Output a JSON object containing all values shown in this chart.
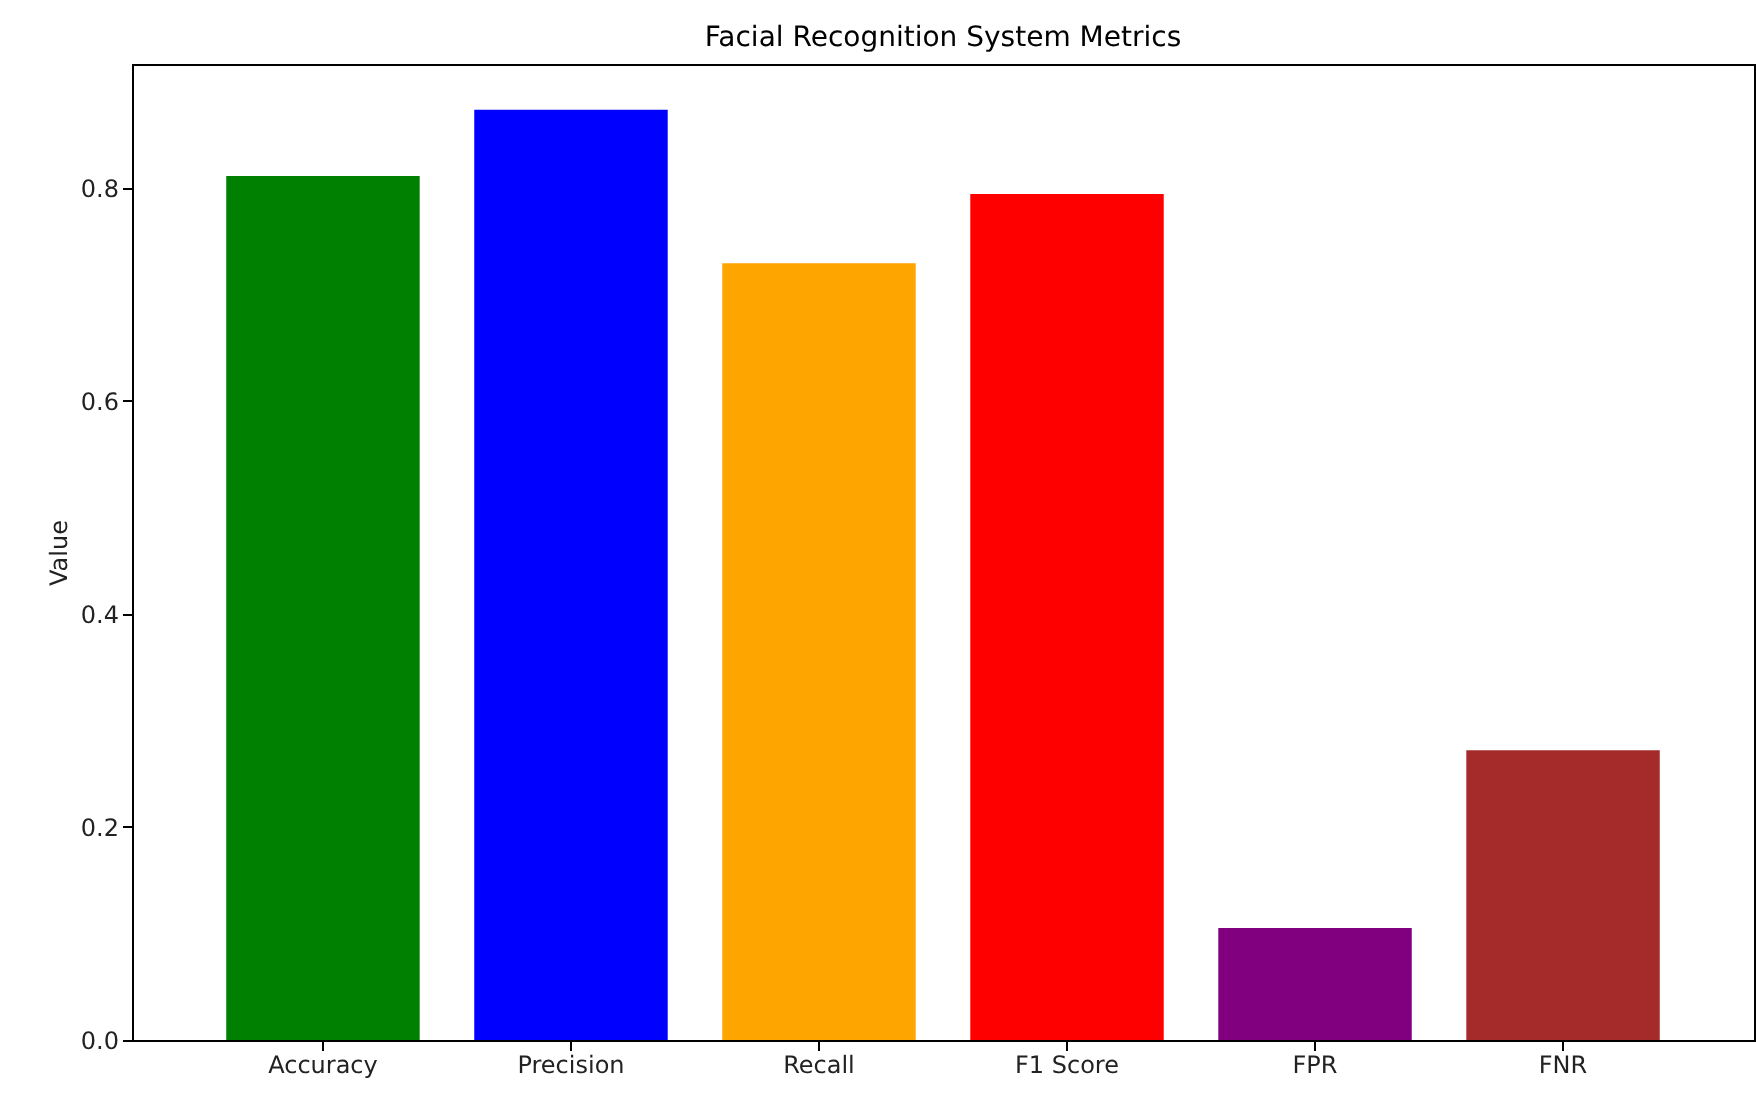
{
  "chart_data": {
    "type": "bar",
    "title": "Facial Recognition System Metrics",
    "ylabel": "Value",
    "categories": [
      "Accuracy",
      "Precision",
      "Recall",
      "F1 Score",
      "FPR",
      "FNR"
    ],
    "values": [
      0.811,
      0.873,
      0.729,
      0.794,
      0.105,
      0.272
    ],
    "colors": [
      "#008000",
      "#0000ff",
      "#ffa500",
      "#ff0000",
      "#800080",
      "#a52a2a"
    ],
    "ylim": [
      0,
      0.916
    ],
    "yticks": [
      {
        "value": 0,
        "label": "0.0"
      },
      {
        "value": 0.2,
        "label": "0.2"
      },
      {
        "value": 0.4,
        "label": "0.4"
      },
      {
        "value": 0.6,
        "label": "0.6"
      },
      {
        "value": 0.8,
        "label": "0.8"
      }
    ],
    "grid": false
  }
}
